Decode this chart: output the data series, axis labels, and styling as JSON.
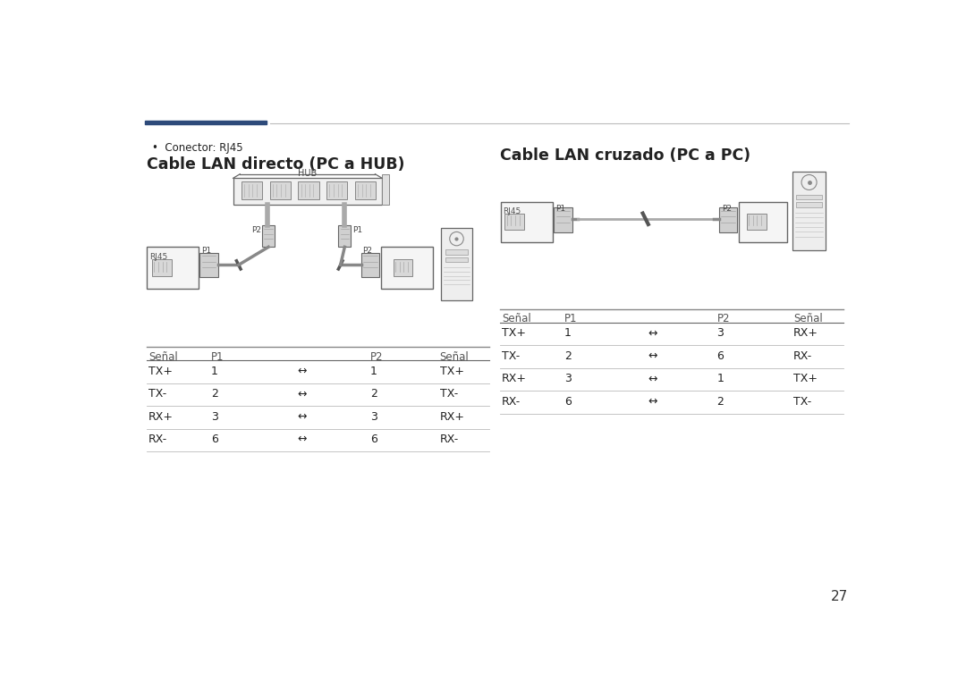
{
  "bg_color": "#ffffff",
  "text_color": "#222222",
  "header_bar_color": "#2d4a7a",
  "header_line_color": "#bbbbbb",
  "bullet_text": "Conector: RJ45",
  "title_left": "Cable LAN directo (PC a HUB)",
  "title_right": "Cable LAN cruzado (PC a PC)",
  "page_number": "27",
  "table_left_headers": [
    "Señal",
    "P1",
    "",
    "P2",
    "Señal"
  ],
  "table_left_rows": [
    [
      "TX+",
      "1",
      "↔",
      "1",
      "TX+"
    ],
    [
      "TX-",
      "2",
      "↔",
      "2",
      "TX-"
    ],
    [
      "RX+",
      "3",
      "↔",
      "3",
      "RX+"
    ],
    [
      "RX-",
      "6",
      "↔",
      "6",
      "RX-"
    ]
  ],
  "table_right_headers": [
    "Señal",
    "P1",
    "",
    "P2",
    "Señal"
  ],
  "table_right_rows": [
    [
      "TX+",
      "1",
      "↔",
      "3",
      "RX+"
    ],
    [
      "TX-",
      "2",
      "↔",
      "6",
      "RX-"
    ],
    [
      "RX+",
      "3",
      "↔",
      "1",
      "TX+"
    ],
    [
      "RX-",
      "6",
      "↔",
      "2",
      "TX-"
    ]
  ]
}
